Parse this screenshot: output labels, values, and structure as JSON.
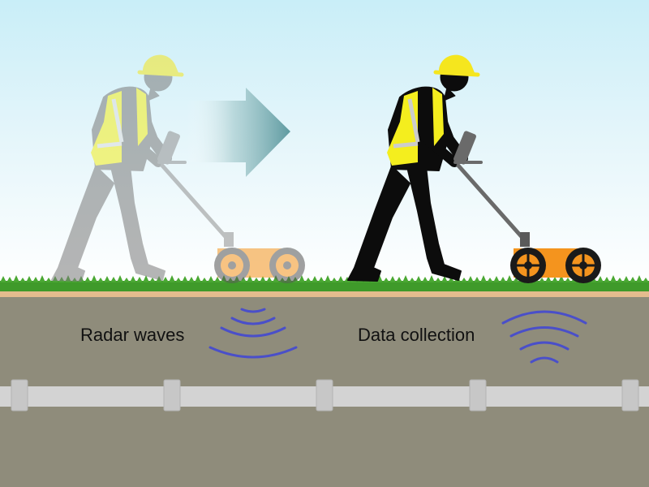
{
  "labels": {
    "radar_waves": "Radar waves",
    "data_collection": "Data collection"
  },
  "colors": {
    "sky_top": "#c9eef8",
    "soil": "#8f8c7b",
    "topsoil": "#e4bc8e",
    "grass": "#3f9a2a",
    "pipe": "#d3d3d3",
    "wave": "#4a4fc9",
    "vest": "#f4ee1e",
    "hardhat": "#f5e61e",
    "gpr_cart": "#f4941e",
    "arrow": "#5e9aa0"
  },
  "icons": {
    "arrow": "right-arrow-icon",
    "worker_ghost": "worker-silhouette-faded",
    "worker": "worker-silhouette"
  }
}
